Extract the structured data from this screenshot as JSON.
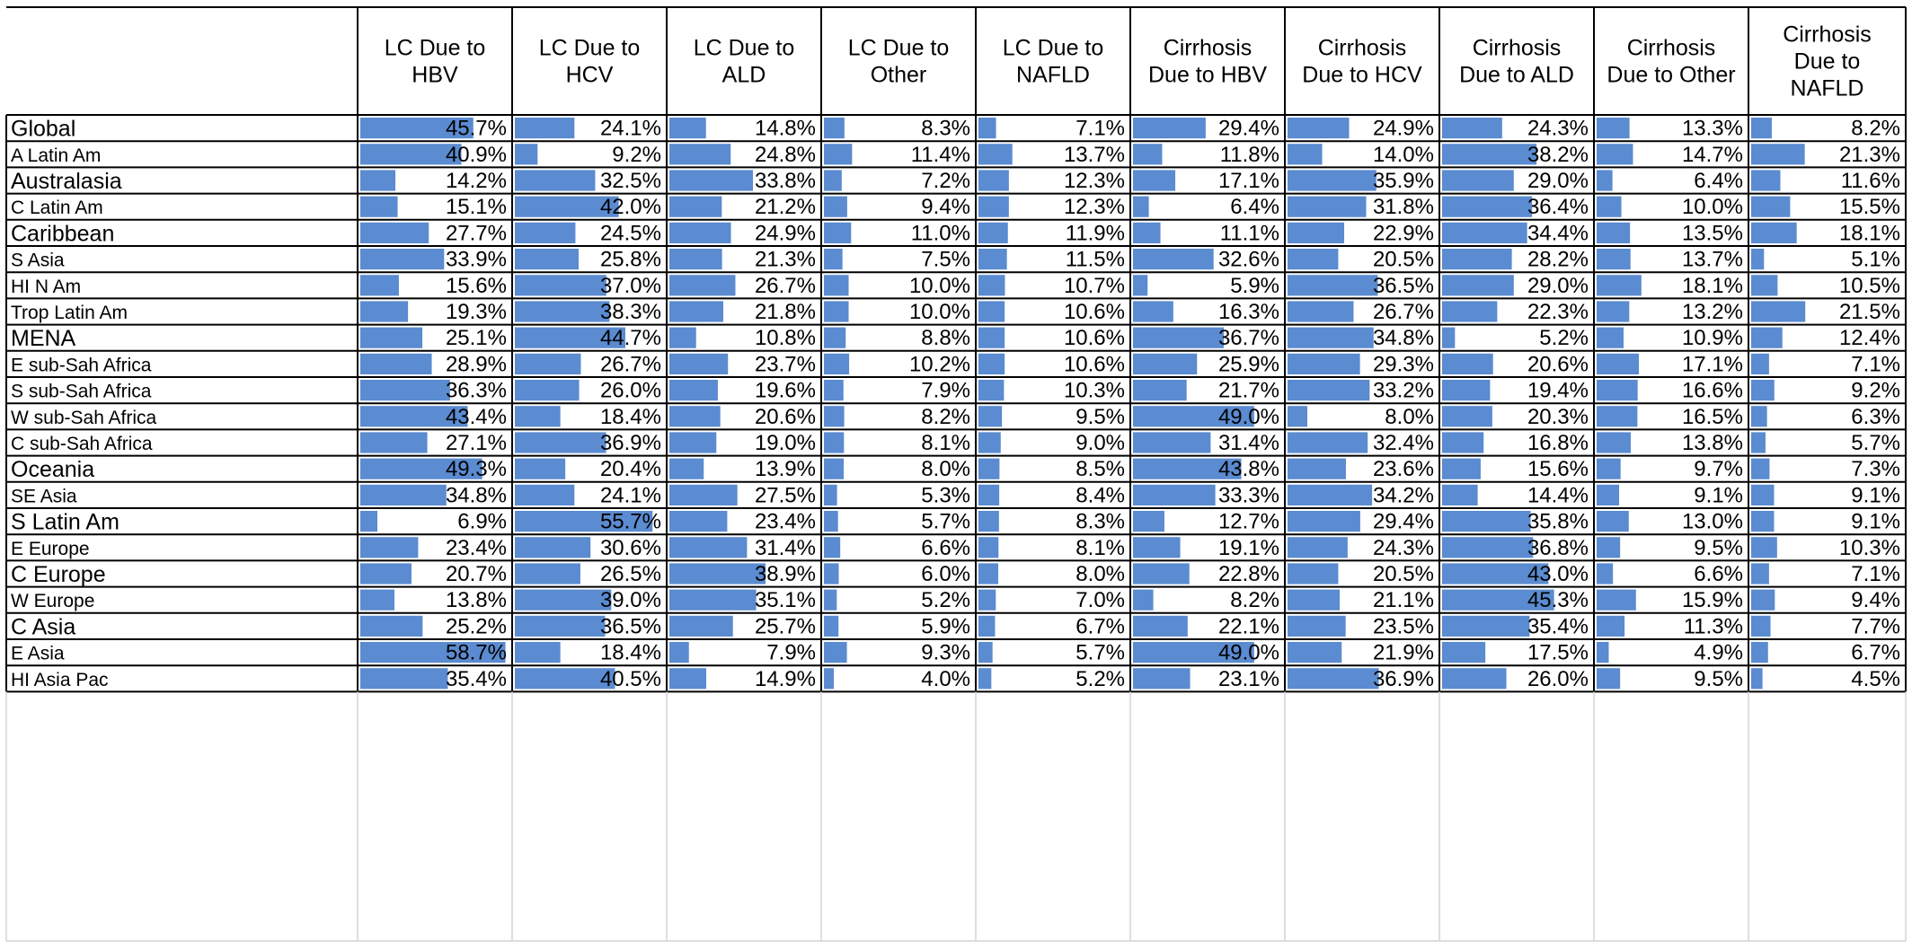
{
  "chart_data": {
    "type": "table",
    "title": "",
    "value_suffix": "%",
    "bar_color": "#5b8bd0",
    "columns": [
      [
        "LC Due to",
        "HBV"
      ],
      [
        "LC Due to",
        "HCV"
      ],
      [
        "LC Due to",
        "ALD"
      ],
      [
        "LC Due to",
        "Other"
      ],
      [
        "LC Due to",
        "NAFLD"
      ],
      [
        "Cirrhosis",
        "Due to HBV"
      ],
      [
        "Cirrhosis",
        "Due to HCV"
      ],
      [
        "Cirrhosis",
        "Due to ALD"
      ],
      [
        "Cirrhosis",
        "Due to Other"
      ],
      [
        "Cirrhosis",
        "Due to",
        "NAFLD"
      ]
    ],
    "rows": [
      {
        "label": "Global",
        "emphasis": true,
        "values": [
          45.7,
          24.1,
          14.8,
          8.3,
          7.1,
          29.4,
          24.9,
          24.3,
          13.3,
          8.2
        ]
      },
      {
        "label": "A Latin Am",
        "emphasis": false,
        "values": [
          40.9,
          9.2,
          24.8,
          11.4,
          13.7,
          11.8,
          14.0,
          38.2,
          14.7,
          21.3
        ]
      },
      {
        "label": "Australasia",
        "emphasis": true,
        "values": [
          14.2,
          32.5,
          33.8,
          7.2,
          12.3,
          17.1,
          35.9,
          29.0,
          6.4,
          11.6
        ]
      },
      {
        "label": "C Latin Am",
        "emphasis": false,
        "values": [
          15.1,
          42.0,
          21.2,
          9.4,
          12.3,
          6.4,
          31.8,
          36.4,
          10.0,
          15.5
        ]
      },
      {
        "label": "Caribbean",
        "emphasis": true,
        "values": [
          27.7,
          24.5,
          24.9,
          11.0,
          11.9,
          11.1,
          22.9,
          34.4,
          13.5,
          18.1
        ]
      },
      {
        "label": "S Asia",
        "emphasis": false,
        "values": [
          33.9,
          25.8,
          21.3,
          7.5,
          11.5,
          32.6,
          20.5,
          28.2,
          13.7,
          5.1
        ]
      },
      {
        "label": "HI N Am",
        "emphasis": false,
        "values": [
          15.6,
          37.0,
          26.7,
          10.0,
          10.7,
          5.9,
          36.5,
          29.0,
          18.1,
          10.5
        ]
      },
      {
        "label": "Trop Latin Am",
        "emphasis": false,
        "values": [
          19.3,
          38.3,
          21.8,
          10.0,
          10.6,
          16.3,
          26.7,
          22.3,
          13.2,
          21.5
        ]
      },
      {
        "label": "MENA",
        "emphasis": true,
        "values": [
          25.1,
          44.7,
          10.8,
          8.8,
          10.6,
          36.7,
          34.8,
          5.2,
          10.9,
          12.4
        ]
      },
      {
        "label": "E sub-Sah Africa",
        "emphasis": false,
        "values": [
          28.9,
          26.7,
          23.7,
          10.2,
          10.6,
          25.9,
          29.3,
          20.6,
          17.1,
          7.1
        ]
      },
      {
        "label": "S sub-Sah Africa",
        "emphasis": false,
        "values": [
          36.3,
          26.0,
          19.6,
          7.9,
          10.3,
          21.7,
          33.2,
          19.4,
          16.6,
          9.2
        ]
      },
      {
        "label": "W sub-Sah Africa",
        "emphasis": false,
        "values": [
          43.4,
          18.4,
          20.6,
          8.2,
          9.5,
          49.0,
          8.0,
          20.3,
          16.5,
          6.3
        ]
      },
      {
        "label": "C sub-Sah Africa",
        "emphasis": false,
        "values": [
          27.1,
          36.9,
          19.0,
          8.1,
          9.0,
          31.4,
          32.4,
          16.8,
          13.8,
          5.7
        ]
      },
      {
        "label": "Oceania",
        "emphasis": true,
        "values": [
          49.3,
          20.4,
          13.9,
          8.0,
          8.5,
          43.8,
          23.6,
          15.6,
          9.7,
          7.3
        ]
      },
      {
        "label": "SE Asia",
        "emphasis": false,
        "values": [
          34.8,
          24.1,
          27.5,
          5.3,
          8.4,
          33.3,
          34.2,
          14.4,
          9.1,
          9.1
        ]
      },
      {
        "label": "S  Latin Am",
        "emphasis": true,
        "values": [
          6.9,
          55.7,
          23.4,
          5.7,
          8.3,
          12.7,
          29.4,
          35.8,
          13.0,
          9.1
        ]
      },
      {
        "label": "E Europe",
        "emphasis": false,
        "values": [
          23.4,
          30.6,
          31.4,
          6.6,
          8.1,
          19.1,
          24.3,
          36.8,
          9.5,
          10.3
        ]
      },
      {
        "label": "C  Europe",
        "emphasis": true,
        "values": [
          20.7,
          26.5,
          38.9,
          6.0,
          8.0,
          22.8,
          20.5,
          43.0,
          6.6,
          7.1
        ]
      },
      {
        "label": "W Europe",
        "emphasis": false,
        "values": [
          13.8,
          39.0,
          35.1,
          5.2,
          7.0,
          8.2,
          21.1,
          45.3,
          15.9,
          9.4
        ]
      },
      {
        "label": "C Asia",
        "emphasis": true,
        "values": [
          25.2,
          36.5,
          25.7,
          5.9,
          6.7,
          22.1,
          23.5,
          35.4,
          11.3,
          7.7
        ]
      },
      {
        "label": "E Asia",
        "emphasis": false,
        "values": [
          58.7,
          18.4,
          7.9,
          9.3,
          5.7,
          49.0,
          21.9,
          17.5,
          4.9,
          6.7
        ]
      },
      {
        "label": "HI Asia Pac",
        "emphasis": false,
        "values": [
          35.4,
          40.5,
          14.9,
          4.0,
          5.2,
          23.1,
          36.9,
          26.0,
          9.5,
          4.5
        ]
      }
    ]
  }
}
